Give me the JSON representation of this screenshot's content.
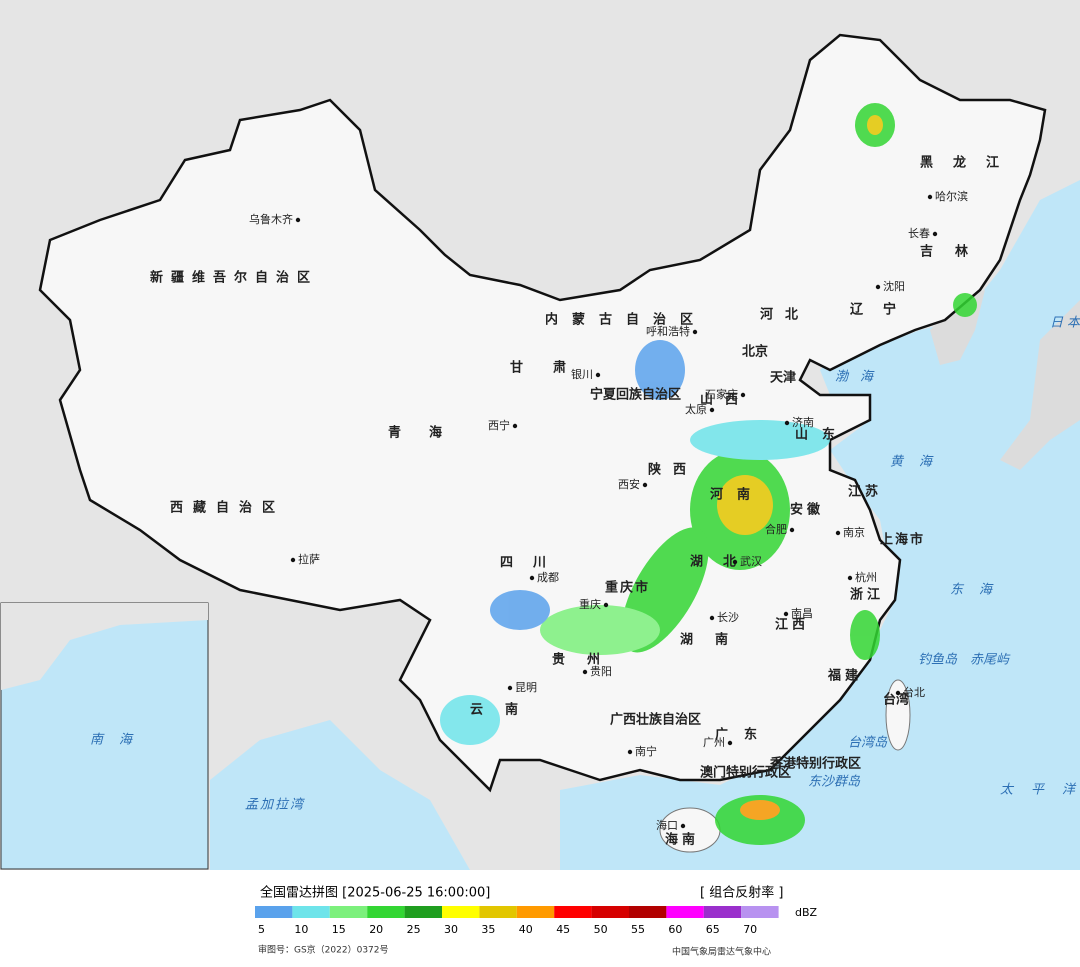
{
  "header": {
    "title": "全国雷达拼图 [2025-06-25 16:00:00]",
    "product": "[ 组合反射率 ]"
  },
  "legend": {
    "unit": "dBZ",
    "levels": [
      {
        "value": 5,
        "color": "#5aa2ec"
      },
      {
        "value": 10,
        "color": "#6ee4ea"
      },
      {
        "value": 15,
        "color": "#7cf07c"
      },
      {
        "value": 20,
        "color": "#33d633"
      },
      {
        "value": 25,
        "color": "#1f9e1f"
      },
      {
        "value": 30,
        "color": "#ffff00"
      },
      {
        "value": 35,
        "color": "#e2c600"
      },
      {
        "value": 40,
        "color": "#ff9a00"
      },
      {
        "value": 45,
        "color": "#ff0000"
      },
      {
        "value": 50,
        "color": "#d60000"
      },
      {
        "value": 55,
        "color": "#b20000"
      },
      {
        "value": 60,
        "color": "#ff00ff"
      },
      {
        "value": 65,
        "color": "#9a2fcc"
      },
      {
        "value": 70,
        "color": "#b892f0"
      }
    ]
  },
  "map": {
    "regions": [
      "新疆维吾尔自治区",
      "西藏自治区",
      "青海",
      "甘肃",
      "内蒙古自治区",
      "黑龙江",
      "吉林",
      "辽宁",
      "河北",
      "山西",
      "陕西",
      "宁夏回族自治区",
      "四川",
      "重庆市",
      "贵州",
      "云南",
      "广西壮族自治区",
      "湖北",
      "湖南",
      "河南",
      "山东",
      "江苏",
      "安徽",
      "浙江",
      "江西",
      "福建",
      "广东",
      "海南",
      "台湾",
      "上海市",
      "北京",
      "天津",
      "香港特别行政区",
      "澳门特别行政区"
    ],
    "cities": [
      "乌鲁木齐",
      "拉萨",
      "西宁",
      "银川",
      "呼和浩特",
      "太原",
      "石家庄",
      "济南",
      "西安",
      "成都",
      "重庆",
      "贵阳",
      "昆明",
      "南宁",
      "广州",
      "长沙",
      "武汉",
      "南昌",
      "合肥",
      "南京",
      "杭州",
      "台北",
      "哈尔滨",
      "长春",
      "沈阳",
      "海口"
    ],
    "seas": [
      "渤海",
      "黄海",
      "东海",
      "日本海",
      "太平洋",
      "孟加拉湾",
      "钓鱼岛",
      "赤尾屿",
      "台湾岛",
      "东沙群岛",
      "南海"
    ]
  },
  "footer": {
    "approval": "审图号：GS京（2022）0372号",
    "source": "中国气象局雷达气象中心"
  }
}
